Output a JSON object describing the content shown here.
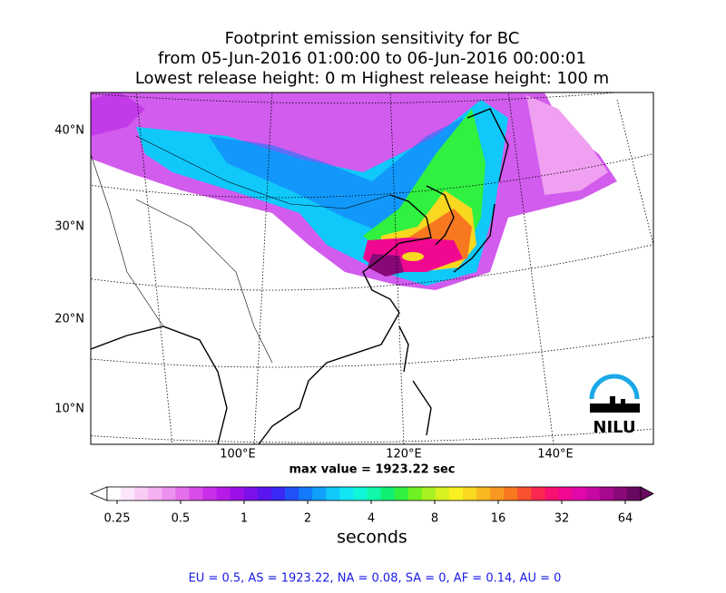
{
  "title_lines": [
    "Footprint emission sensitivity for BC",
    "from 05-Jun-2016 01:00:00 to 06-Jun-2016 00:00:01",
    "Lowest release height: 0 m      Highest release height: 100 m"
  ],
  "map": {
    "lat_labels": [
      "40°N",
      "30°N",
      "20°N",
      "10°N"
    ],
    "lon_labels": [
      "100°E",
      "120°E",
      "140°E"
    ],
    "logo": "NILU"
  },
  "max_value_text": "max value = 1923.22 sec",
  "colorbar": {
    "ticks": [
      0.25,
      0.5,
      1,
      2,
      4,
      8,
      16,
      32,
      64
    ],
    "log": true,
    "label": "seconds",
    "colors": [
      "#ffffff",
      "#fde6fb",
      "#f9ccf6",
      "#f3b0f2",
      "#ec90ee",
      "#e46feb",
      "#d94ce9",
      "#c92ee8",
      "#b61ae6",
      "#9a10e6",
      "#7d10ea",
      "#5a14ee",
      "#3a28f4",
      "#2050f8",
      "#1478fa",
      "#10a0fa",
      "#10c8fa",
      "#10e6f4",
      "#10f6d8",
      "#10f8a8",
      "#10f070",
      "#30f040",
      "#70f020",
      "#a8f020",
      "#d8f020",
      "#f8f020",
      "#f8d820",
      "#f8b820",
      "#f89820",
      "#f87820",
      "#f85030",
      "#f82850",
      "#f81070",
      "#f00890",
      "#e008a8",
      "#c808a0",
      "#a80890",
      "#880878",
      "#680860"
    ]
  },
  "footer": "EU = 0.5,  AS = 1923.22,  NA = 0.08,  SA = 0,  AF = 0.14,  AU = 0"
}
